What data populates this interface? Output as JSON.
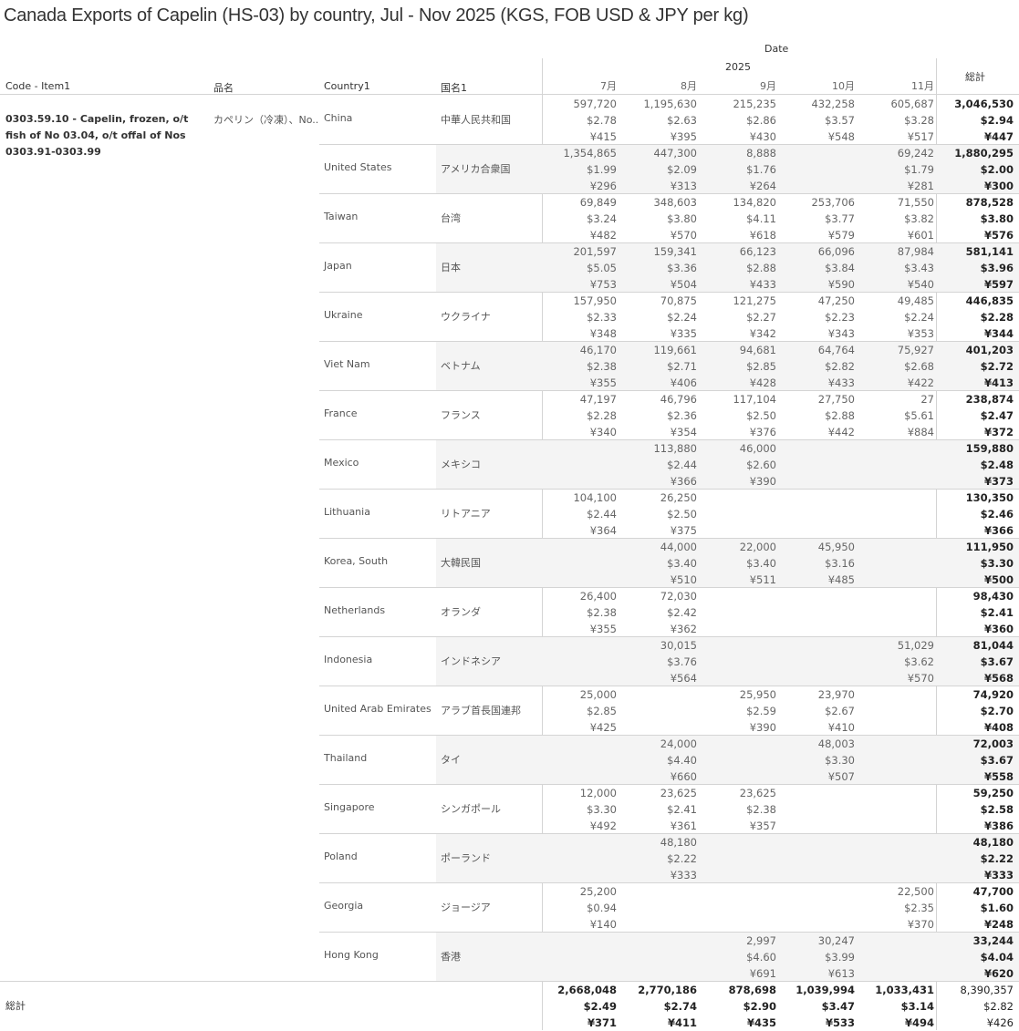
{
  "title": "Canada Exports of Capelin (HS-03) by country, Jul - Nov 2025 (KGS, FOB USD & JPY per kg)",
  "header": {
    "date_label": "Date",
    "year": "2025",
    "months": [
      "7月",
      "8月",
      "9月",
      "10月",
      "11月"
    ],
    "total": "総計",
    "col_code": "Code - Item1",
    "col_hinmei": "品名",
    "col_country": "Country1",
    "col_jp": "国名1"
  },
  "item": {
    "code": "0303.59.10 - Capelin, frozen, o/t fish of No 03.04, o/t offal of Nos 0303.91-0303.99",
    "hinmei": "カペリン（冷凍）、No.."
  },
  "rows": [
    {
      "country": "China",
      "jp": "中華人民共和国",
      "months": [
        [
          "597,720",
          "$2.78",
          "¥415"
        ],
        [
          "1,195,630",
          "$2.63",
          "¥395"
        ],
        [
          "215,235",
          "$2.86",
          "¥430"
        ],
        [
          "432,258",
          "$3.57",
          "¥548"
        ],
        [
          "605,687",
          "$3.28",
          "¥517"
        ]
      ],
      "total": [
        "3,046,530",
        "$2.94",
        "¥447"
      ]
    },
    {
      "country": "United States",
      "jp": "アメリカ合衆国",
      "months": [
        [
          "1,354,865",
          "$1.99",
          "¥296"
        ],
        [
          "447,300",
          "$2.09",
          "¥313"
        ],
        [
          "8,888",
          "$1.76",
          "¥264"
        ],
        null,
        [
          "69,242",
          "$1.79",
          "¥281"
        ]
      ],
      "total": [
        "1,880,295",
        "$2.00",
        "¥300"
      ]
    },
    {
      "country": "Taiwan",
      "jp": "台湾",
      "months": [
        [
          "69,849",
          "$3.24",
          "¥482"
        ],
        [
          "348,603",
          "$3.80",
          "¥570"
        ],
        [
          "134,820",
          "$4.11",
          "¥618"
        ],
        [
          "253,706",
          "$3.77",
          "¥579"
        ],
        [
          "71,550",
          "$3.82",
          "¥601"
        ]
      ],
      "total": [
        "878,528",
        "$3.80",
        "¥576"
      ]
    },
    {
      "country": "Japan",
      "jp": "日本",
      "months": [
        [
          "201,597",
          "$5.05",
          "¥753"
        ],
        [
          "159,341",
          "$3.36",
          "¥504"
        ],
        [
          "66,123",
          "$2.88",
          "¥433"
        ],
        [
          "66,096",
          "$3.84",
          "¥590"
        ],
        [
          "87,984",
          "$3.43",
          "¥540"
        ]
      ],
      "total": [
        "581,141",
        "$3.96",
        "¥597"
      ]
    },
    {
      "country": "Ukraine",
      "jp": "ウクライナ",
      "months": [
        [
          "157,950",
          "$2.33",
          "¥348"
        ],
        [
          "70,875",
          "$2.24",
          "¥335"
        ],
        [
          "121,275",
          "$2.27",
          "¥342"
        ],
        [
          "47,250",
          "$2.23",
          "¥343"
        ],
        [
          "49,485",
          "$2.24",
          "¥353"
        ]
      ],
      "total": [
        "446,835",
        "$2.28",
        "¥344"
      ]
    },
    {
      "country": "Viet Nam",
      "jp": "ベトナム",
      "months": [
        [
          "46,170",
          "$2.38",
          "¥355"
        ],
        [
          "119,661",
          "$2.71",
          "¥406"
        ],
        [
          "94,681",
          "$2.85",
          "¥428"
        ],
        [
          "64,764",
          "$2.82",
          "¥433"
        ],
        [
          "75,927",
          "$2.68",
          "¥422"
        ]
      ],
      "total": [
        "401,203",
        "$2.72",
        "¥413"
      ]
    },
    {
      "country": "France",
      "jp": "フランス",
      "months": [
        [
          "47,197",
          "$2.28",
          "¥340"
        ],
        [
          "46,796",
          "$2.36",
          "¥354"
        ],
        [
          "117,104",
          "$2.50",
          "¥376"
        ],
        [
          "27,750",
          "$2.88",
          "¥442"
        ],
        [
          "27",
          "$5.61",
          "¥884"
        ]
      ],
      "total": [
        "238,874",
        "$2.47",
        "¥372"
      ]
    },
    {
      "country": "Mexico",
      "jp": "メキシコ",
      "months": [
        null,
        [
          "113,880",
          "$2.44",
          "¥366"
        ],
        [
          "46,000",
          "$2.60",
          "¥390"
        ],
        null,
        null
      ],
      "total": [
        "159,880",
        "$2.48",
        "¥373"
      ]
    },
    {
      "country": "Lithuania",
      "jp": "リトアニア",
      "months": [
        [
          "104,100",
          "$2.44",
          "¥364"
        ],
        [
          "26,250",
          "$2.50",
          "¥375"
        ],
        null,
        null,
        null
      ],
      "total": [
        "130,350",
        "$2.46",
        "¥366"
      ]
    },
    {
      "country": "Korea, South",
      "jp": "大韓民国",
      "months": [
        null,
        [
          "44,000",
          "$3.40",
          "¥510"
        ],
        [
          "22,000",
          "$3.40",
          "¥511"
        ],
        [
          "45,950",
          "$3.16",
          "¥485"
        ],
        null
      ],
      "total": [
        "111,950",
        "$3.30",
        "¥500"
      ]
    },
    {
      "country": "Netherlands",
      "jp": "オランダ",
      "months": [
        [
          "26,400",
          "$2.38",
          "¥355"
        ],
        [
          "72,030",
          "$2.42",
          "¥362"
        ],
        null,
        null,
        null
      ],
      "total": [
        "98,430",
        "$2.41",
        "¥360"
      ]
    },
    {
      "country": "Indonesia",
      "jp": "インドネシア",
      "months": [
        null,
        [
          "30,015",
          "$3.76",
          "¥564"
        ],
        null,
        null,
        [
          "51,029",
          "$3.62",
          "¥570"
        ]
      ],
      "total": [
        "81,044",
        "$3.67",
        "¥568"
      ]
    },
    {
      "country": "United Arab Emirates",
      "jp": "アラブ首長国連邦",
      "months": [
        [
          "25,000",
          "$2.85",
          "¥425"
        ],
        null,
        [
          "25,950",
          "$2.59",
          "¥390"
        ],
        [
          "23,970",
          "$2.67",
          "¥410"
        ],
        null
      ],
      "total": [
        "74,920",
        "$2.70",
        "¥408"
      ]
    },
    {
      "country": "Thailand",
      "jp": "タイ",
      "months": [
        null,
        [
          "24,000",
          "$4.40",
          "¥660"
        ],
        null,
        [
          "48,003",
          "$3.30",
          "¥507"
        ],
        null
      ],
      "total": [
        "72,003",
        "$3.67",
        "¥558"
      ]
    },
    {
      "country": "Singapore",
      "jp": "シンガポール",
      "months": [
        [
          "12,000",
          "$3.30",
          "¥492"
        ],
        [
          "23,625",
          "$2.41",
          "¥361"
        ],
        [
          "23,625",
          "$2.38",
          "¥357"
        ],
        null,
        null
      ],
      "total": [
        "59,250",
        "$2.58",
        "¥386"
      ]
    },
    {
      "country": "Poland",
      "jp": "ポーランド",
      "months": [
        null,
        [
          "48,180",
          "$2.22",
          "¥333"
        ],
        null,
        null,
        null
      ],
      "total": [
        "48,180",
        "$2.22",
        "¥333"
      ]
    },
    {
      "country": "Georgia",
      "jp": "ジョージア",
      "months": [
        [
          "25,200",
          "$0.94",
          "¥140"
        ],
        null,
        null,
        null,
        [
          "22,500",
          "$2.35",
          "¥370"
        ]
      ],
      "total": [
        "47,700",
        "$1.60",
        "¥248"
      ]
    },
    {
      "country": "Hong Kong",
      "jp": "香港",
      "months": [
        null,
        null,
        [
          "2,997",
          "$4.60",
          "¥691"
        ],
        [
          "30,247",
          "$3.99",
          "¥613"
        ],
        null
      ],
      "total": [
        "33,244",
        "$4.04",
        "¥620"
      ]
    }
  ],
  "grand_total": {
    "label": "総計",
    "months": [
      [
        "2,668,048",
        "$2.49",
        "¥371"
      ],
      [
        "2,770,186",
        "$2.74",
        "¥411"
      ],
      [
        "878,698",
        "$2.90",
        "¥435"
      ],
      [
        "1,039,994",
        "$3.47",
        "¥533"
      ],
      [
        "1,033,431",
        "$3.14",
        "¥494"
      ]
    ],
    "total": [
      "8,390,357",
      "$2.82",
      "¥426"
    ]
  },
  "colors": {
    "shade": "#f4f4f4",
    "grid": "#d4d4d4"
  }
}
